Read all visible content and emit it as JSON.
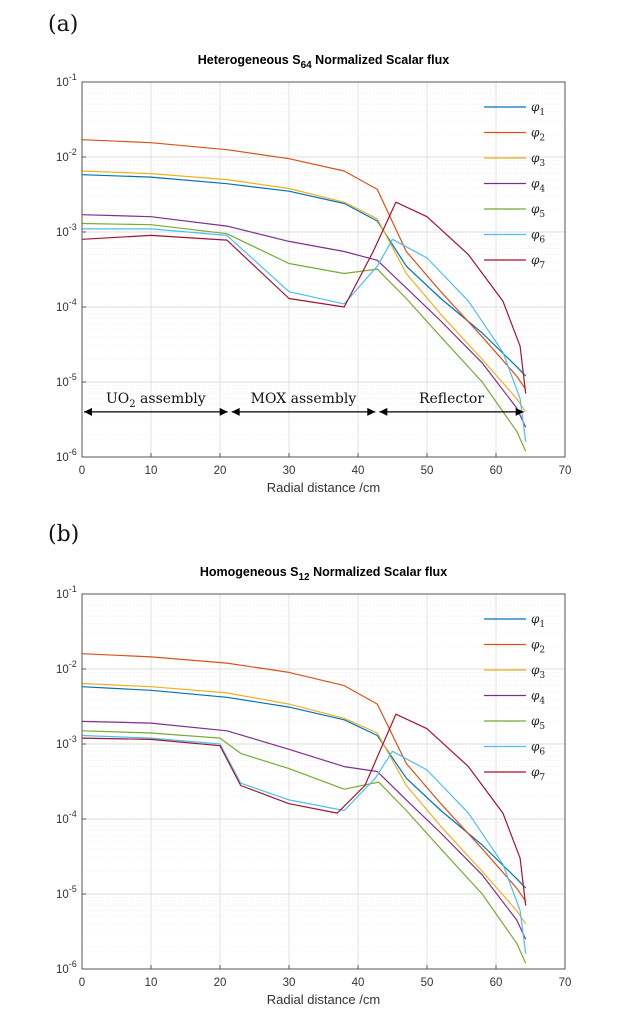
{
  "colors": [
    "#0072BD",
    "#D95319",
    "#EDB120",
    "#7E2F8E",
    "#77AC30",
    "#4DBEEE",
    "#A2142F"
  ],
  "chart_data": [
    {
      "type": "line",
      "panel_label": "(a)",
      "title_pre": "Heterogeneous S",
      "title_sub": "64",
      "title_post": " Normalized Scalar flux",
      "xlabel": "Radial distance /cm",
      "ylabel": "",
      "xlim": [
        0,
        70
      ],
      "ylim": [
        1e-06,
        0.1
      ],
      "yscale": "log",
      "grid": true,
      "legend_position": "top-right",
      "xticks": [
        "0",
        "10",
        "20",
        "30",
        "40",
        "50",
        "60",
        "70"
      ],
      "ytick_exponents": [
        "-6",
        "-5",
        "-4",
        "-3",
        "-2",
        "-1"
      ],
      "annotations": [
        {
          "label": "UO",
          "sub": "2",
          "label_post": " assembly",
          "from_x": 0,
          "to_x": 21.4
        },
        {
          "label": "MOX assembly",
          "sub": "",
          "label_post": "",
          "from_x": 21.4,
          "to_x": 42.8
        },
        {
          "label": "Reflector",
          "sub": "",
          "label_post": "",
          "from_x": 42.8,
          "to_x": 64.3
        }
      ],
      "series": [
        {
          "name": "φ",
          "sub": "1",
          "x": [
            0,
            10,
            21,
            30,
            38,
            42.8,
            47,
            52,
            58,
            63,
            64.3
          ],
          "y": [
            0.0058,
            0.0054,
            0.0044,
            0.0035,
            0.0024,
            0.0014,
            0.00035,
            0.00013,
            4.5e-05,
            1.6e-05,
            1.2e-05
          ]
        },
        {
          "name": "φ",
          "sub": "2",
          "x": [
            0,
            10,
            21,
            30,
            38,
            42.8,
            47,
            52,
            58,
            63,
            64.3
          ],
          "y": [
            0.017,
            0.0155,
            0.0125,
            0.0095,
            0.0065,
            0.0037,
            0.00055,
            0.00016,
            4e-05,
            1.2e-05,
            8e-06
          ]
        },
        {
          "name": "φ",
          "sub": "3",
          "x": [
            0,
            10,
            21,
            30,
            38,
            42.8,
            47,
            52,
            58,
            63,
            64.3
          ],
          "y": [
            0.0065,
            0.006,
            0.005,
            0.0038,
            0.0025,
            0.0015,
            0.00028,
            8e-05,
            2e-05,
            6e-06,
            4e-06
          ]
        },
        {
          "name": "φ",
          "sub": "4",
          "x": [
            0,
            10,
            21,
            30,
            38,
            42.8,
            47,
            52,
            58,
            63,
            64.3
          ],
          "y": [
            0.0017,
            0.0016,
            0.0012,
            0.00075,
            0.00055,
            0.00042,
            0.00018,
            6.5e-05,
            1.8e-05,
            4.5e-06,
            2.5e-06
          ]
        },
        {
          "name": "φ",
          "sub": "5",
          "x": [
            0,
            10,
            21,
            30,
            38,
            42.8,
            47,
            52,
            58,
            63,
            64.3
          ],
          "y": [
            0.0013,
            0.00125,
            0.00095,
            0.00038,
            0.00028,
            0.00032,
            0.00013,
            4e-05,
            1e-05,
            2.2e-06,
            1.2e-06
          ]
        },
        {
          "name": "φ",
          "sub": "6",
          "x": [
            0,
            10,
            21,
            30,
            38,
            42.8,
            45,
            50,
            56,
            61,
            63.5,
            64.3
          ],
          "y": [
            0.0011,
            0.0011,
            0.0009,
            0.00016,
            0.00011,
            0.00035,
            0.0008,
            0.00045,
            0.00012,
            2.5e-05,
            6e-06,
            1.6e-06
          ]
        },
        {
          "name": "φ",
          "sub": "7",
          "x": [
            0,
            10,
            21,
            30,
            38,
            42.2,
            45.5,
            50,
            56,
            61,
            63.5,
            64.3
          ],
          "y": [
            0.0008,
            0.0009,
            0.00078,
            0.00013,
            0.0001,
            0.00055,
            0.0025,
            0.0016,
            0.0005,
            0.00012,
            3e-05,
            7e-06
          ]
        }
      ]
    },
    {
      "type": "line",
      "panel_label": "(b)",
      "title_pre": "Homogeneous S",
      "title_sub": "12",
      "title_post": " Normalized Scalar flux",
      "xlabel": "Radial distance /cm",
      "ylabel": "",
      "xlim": [
        0,
        70
      ],
      "ylim": [
        1e-06,
        0.1
      ],
      "yscale": "log",
      "grid": true,
      "legend_position": "top-right",
      "xticks": [
        "0",
        "10",
        "20",
        "30",
        "40",
        "50",
        "60",
        "70"
      ],
      "ytick_exponents": [
        "-6",
        "-5",
        "-4",
        "-3",
        "-2",
        "-1"
      ],
      "annotations": [],
      "series": [
        {
          "name": "φ",
          "sub": "1",
          "x": [
            0,
            10,
            21,
            30,
            38,
            42.8,
            47,
            52,
            58,
            63,
            64.3
          ],
          "y": [
            0.0058,
            0.0052,
            0.0042,
            0.0031,
            0.0021,
            0.0013,
            0.00035,
            0.00013,
            4.5e-05,
            1.6e-05,
            1.2e-05
          ]
        },
        {
          "name": "φ",
          "sub": "2",
          "x": [
            0,
            10,
            21,
            30,
            38,
            42.8,
            47,
            52,
            58,
            63,
            64.3
          ],
          "y": [
            0.016,
            0.0145,
            0.012,
            0.009,
            0.006,
            0.0034,
            0.00055,
            0.00016,
            4e-05,
            1.2e-05,
            8e-06
          ]
        },
        {
          "name": "φ",
          "sub": "3",
          "x": [
            0,
            10,
            21,
            30,
            38,
            42.8,
            47,
            52,
            58,
            63,
            64.3
          ],
          "y": [
            0.0064,
            0.0058,
            0.0048,
            0.0034,
            0.0022,
            0.0014,
            0.00028,
            8e-05,
            2e-05,
            6e-06,
            4e-06
          ]
        },
        {
          "name": "φ",
          "sub": "4",
          "x": [
            0,
            10,
            21,
            30,
            38,
            42.8,
            47,
            52,
            58,
            63,
            64.3
          ],
          "y": [
            0.002,
            0.0019,
            0.0015,
            0.00085,
            0.0005,
            0.00043,
            0.00018,
            6.5e-05,
            1.8e-05,
            4.5e-06,
            2.5e-06
          ]
        },
        {
          "name": "φ",
          "sub": "5",
          "x": [
            0,
            10,
            20,
            23,
            30,
            38,
            43,
            47,
            52,
            58,
            63,
            64.3
          ],
          "y": [
            0.0015,
            0.0014,
            0.0012,
            0.00075,
            0.00047,
            0.00025,
            0.00031,
            0.00013,
            4e-05,
            1e-05,
            2.2e-06,
            1.2e-06
          ]
        },
        {
          "name": "φ",
          "sub": "6",
          "x": [
            0,
            10,
            20,
            23,
            30,
            38,
            42.5,
            45,
            50,
            56,
            61,
            63.5,
            64.3
          ],
          "y": [
            0.0013,
            0.0012,
            0.001,
            0.0003,
            0.00018,
            0.00013,
            0.00035,
            0.0008,
            0.00045,
            0.00012,
            2.5e-05,
            6e-06,
            1.6e-06
          ]
        },
        {
          "name": "φ",
          "sub": "7",
          "x": [
            0,
            10,
            20,
            23,
            30,
            37,
            41,
            45.5,
            50,
            56,
            61,
            63.5,
            64.3
          ],
          "y": [
            0.0012,
            0.00115,
            0.00095,
            0.00028,
            0.00016,
            0.00012,
            0.00028,
            0.0025,
            0.0016,
            0.0005,
            0.00012,
            3e-05,
            7e-06
          ]
        }
      ]
    }
  ]
}
